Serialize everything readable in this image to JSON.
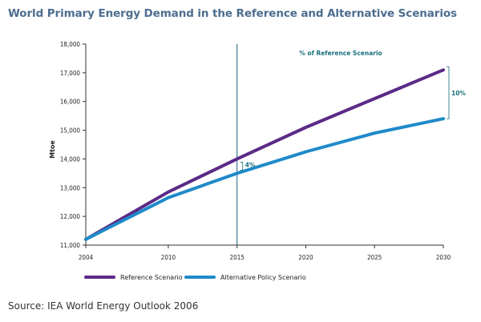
{
  "title": "World Primary Energy Demand in the Reference and Alternative Scenarios",
  "source": "Source: IEA World Energy Outlook 2006",
  "chart_data": {
    "type": "line",
    "x": [
      2004,
      2010,
      2015,
      2020,
      2025,
      2030
    ],
    "x_ticks": [
      "2004",
      "2010",
      "2015",
      "2020",
      "2025",
      "2030"
    ],
    "ylabel": "Mtoe",
    "ylim": [
      11000,
      18000
    ],
    "y_ticks": [
      "11,000",
      "12,000",
      "13,000",
      "14,000",
      "15,000",
      "16,000",
      "17,000",
      "18,000"
    ],
    "y_tick_values": [
      11000,
      12000,
      13000,
      14000,
      15000,
      16000,
      17000,
      18000
    ],
    "grid": false,
    "series": [
      {
        "name": "Reference Scenario",
        "color": "#5b2a86",
        "values": [
          11200,
          12850,
          14000,
          15100,
          16100,
          17100
        ]
      },
      {
        "name": "Alternative Policy Scenario",
        "color": "#1f8ac9",
        "values": [
          11200,
          12650,
          13500,
          14250,
          14900,
          15400
        ]
      }
    ],
    "reference_line_x": 2015,
    "reference_line_color": "#1a5e78",
    "annotations": {
      "header": "% of Reference Scenario",
      "gap_2015": "4%",
      "gap_2030": "10%"
    },
    "legend_placement": "bottom-left"
  }
}
